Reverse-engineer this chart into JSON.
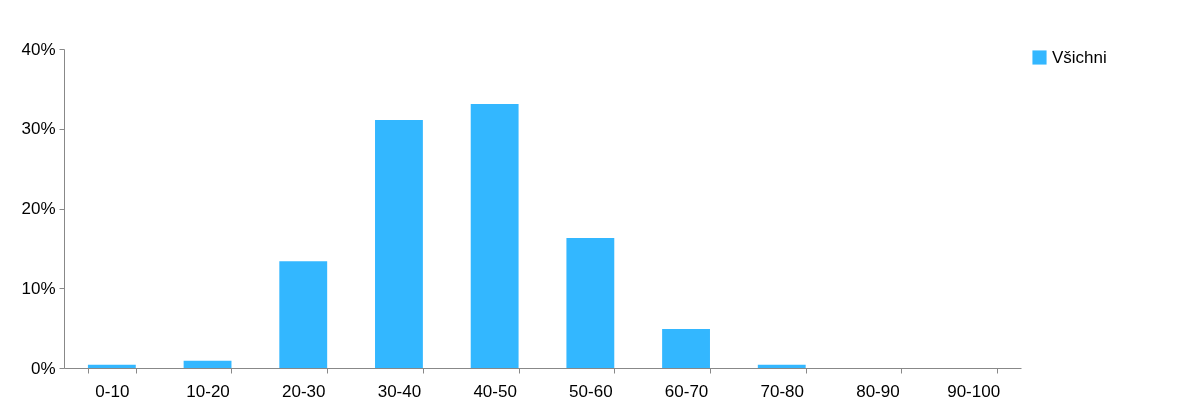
{
  "chart_data": {
    "type": "bar",
    "categories": [
      "0-10",
      "10-20",
      "20-30",
      "30-40",
      "40-50",
      "50-60",
      "60-70",
      "70-80",
      "80-90",
      "90-100"
    ],
    "series": [
      {
        "name": "Všichni",
        "color": "#33b7ff",
        "values": [
          0.4,
          0.9,
          13.4,
          31.1,
          33.1,
          16.3,
          4.9,
          0.4,
          0,
          0
        ]
      }
    ],
    "ylim": [
      0,
      40
    ],
    "yticks": [
      {
        "value": 0,
        "label": "0%"
      },
      {
        "value": 10,
        "label": "10%"
      },
      {
        "value": 20,
        "label": "20%"
      },
      {
        "value": 30,
        "label": "30%"
      },
      {
        "value": 40,
        "label": "40%"
      }
    ],
    "grid": false,
    "legend": "right"
  }
}
